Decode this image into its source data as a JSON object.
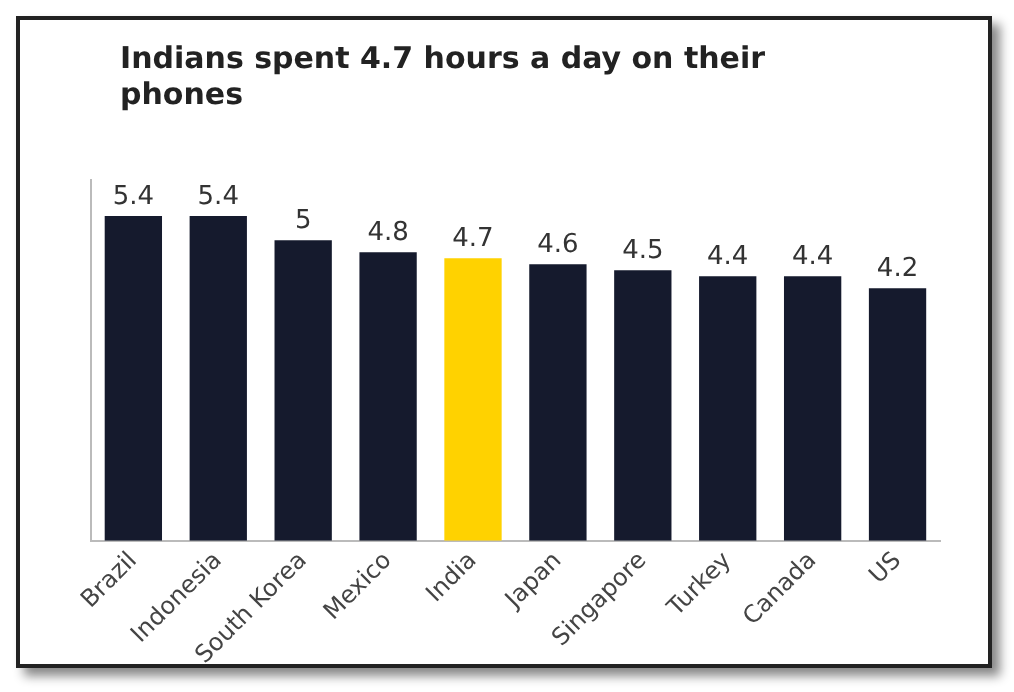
{
  "chart_data": {
    "type": "bar",
    "title": "Indians spent 4.7 hours a day on their phones",
    "categories": [
      "Brazil",
      "Indonesia",
      "South Korea",
      "Mexico",
      "India",
      "Japan",
      "Singapore",
      "Turkey",
      "Canada",
      "US"
    ],
    "values": [
      5.4,
      5.4,
      5,
      4.8,
      4.7,
      4.6,
      4.5,
      4.4,
      4.4,
      4.2
    ],
    "colors": [
      "#151a2d",
      "#151a2d",
      "#151a2d",
      "#151a2d",
      "#ffd200",
      "#151a2d",
      "#151a2d",
      "#151a2d",
      "#151a2d",
      "#151a2d"
    ],
    "data_labels": true,
    "grid": false,
    "legend": false
  }
}
